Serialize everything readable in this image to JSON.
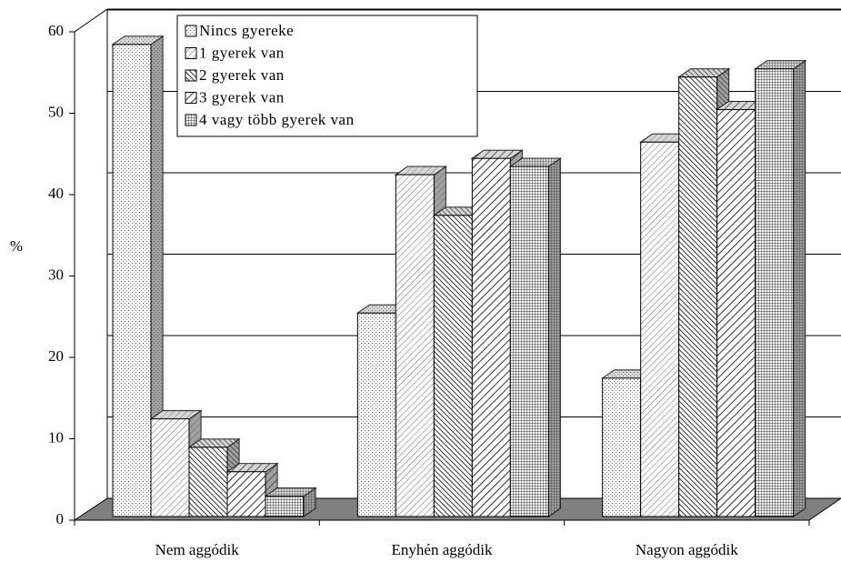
{
  "chart_data": {
    "type": "bar3d",
    "y_label": "%",
    "categories": [
      "Nem aggódik",
      "Enyhén aggódik",
      "Nagyon aggódik"
    ],
    "series": [
      {
        "name": "Nincs gyereke",
        "values": [
          58,
          25,
          17
        ]
      },
      {
        "name": "1 gyerek van",
        "values": [
          12,
          42,
          46
        ]
      },
      {
        "name": "2 gyerek van",
        "values": [
          8.5,
          37,
          54
        ]
      },
      {
        "name": "3 gyerek van",
        "values": [
          5.5,
          44,
          50
        ]
      },
      {
        "name": "4 vagy több gyerek van",
        "values": [
          2.5,
          43,
          55
        ]
      }
    ],
    "ylim": [
      0,
      60
    ],
    "yticks": [
      0,
      10,
      20,
      30,
      40,
      50,
      60
    ],
    "grid": true,
    "legend": "top"
  }
}
